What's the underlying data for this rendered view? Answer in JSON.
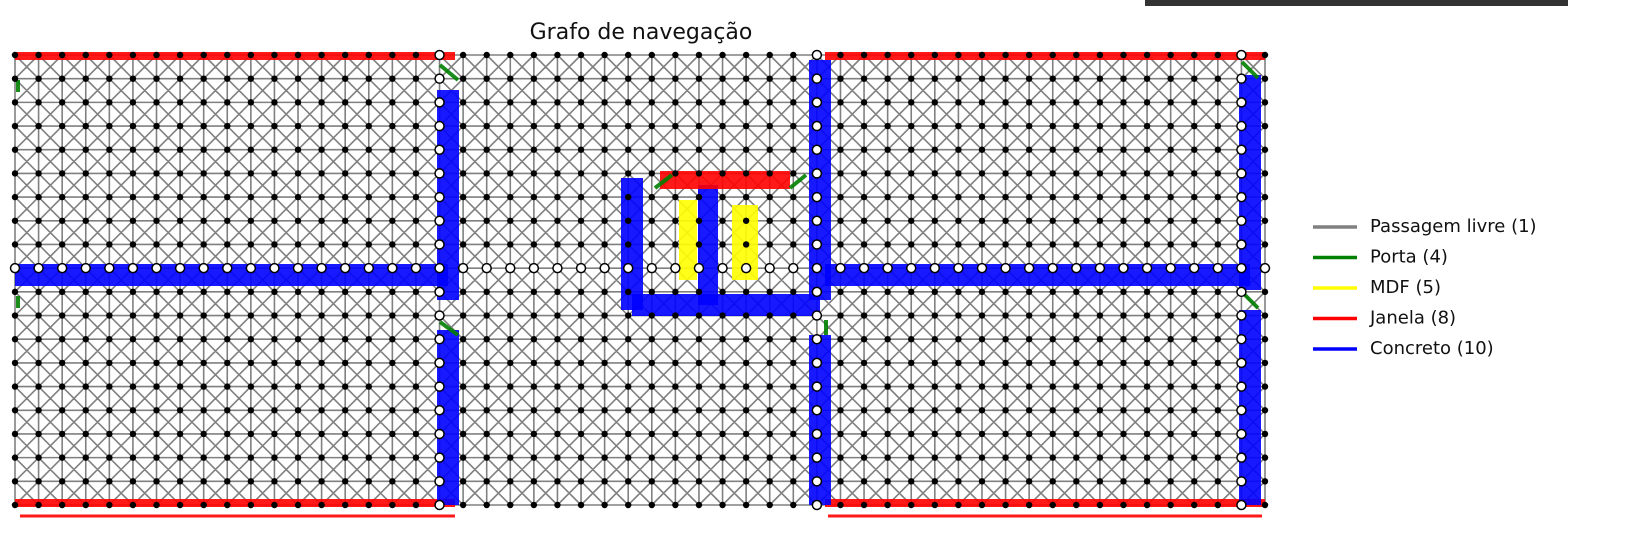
{
  "title": "Grafo de navegação",
  "legend": [
    {
      "label": "Passagem livre (1)",
      "color": "#808080"
    },
    {
      "label": "Porta (4)",
      "color": "#008000"
    },
    {
      "label": "MDF (5)",
      "color": "#ffff00"
    },
    {
      "label": "Janela (8)",
      "color": "#ff0000"
    },
    {
      "label": "Concreto (10)",
      "color": "#0000ff"
    }
  ]
}
